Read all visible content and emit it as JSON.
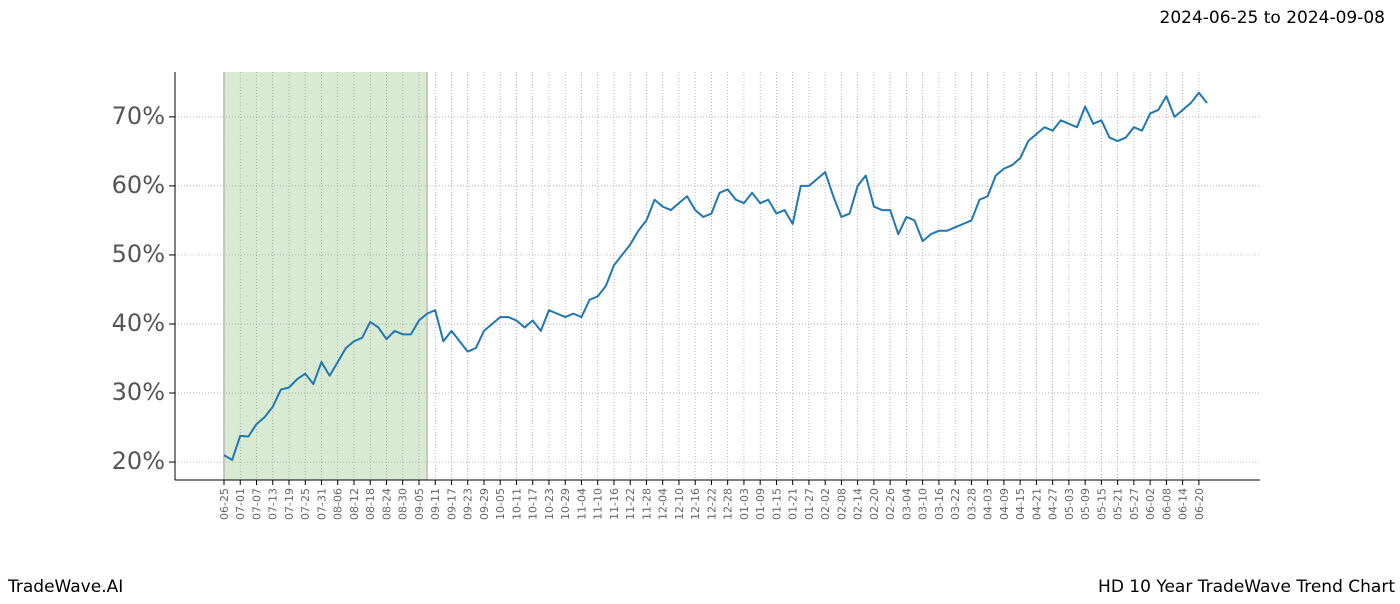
{
  "chart_data": {
    "type": "line",
    "date_range": "2024-06-25 to 2024-09-08",
    "brand": "TradeWave.AI",
    "title": "HD 10 Year TradeWave Trend Chart",
    "categories": [
      "06-25",
      null,
      "07-01",
      null,
      "07-07",
      null,
      "07-13",
      null,
      "07-19",
      null,
      "07-25",
      null,
      "07-31",
      null,
      "08-06",
      null,
      "08-12",
      null,
      "08-18",
      null,
      "08-24",
      null,
      "08-30",
      null,
      "09-05",
      null,
      "09-11",
      null,
      "09-17",
      null,
      "09-23",
      null,
      "09-29",
      null,
      "10-05",
      null,
      "10-11",
      null,
      "10-17",
      null,
      "10-23",
      null,
      "10-29",
      null,
      "11-04",
      null,
      "11-10",
      null,
      "11-16",
      null,
      "11-22",
      null,
      "11-28",
      null,
      "12-04",
      null,
      "12-10",
      null,
      "12-16",
      null,
      "12-22",
      null,
      "12-28",
      null,
      "01-03",
      null,
      "01-09",
      null,
      "01-15",
      null,
      "01-21",
      null,
      "01-27",
      null,
      "02-02",
      null,
      "02-08",
      null,
      "02-14",
      null,
      "02-20",
      null,
      "02-26",
      null,
      "03-04",
      null,
      "03-10",
      null,
      "03-16",
      null,
      "03-22",
      null,
      "03-28",
      null,
      "04-03",
      null,
      "04-09",
      null,
      "04-15",
      null,
      "04-21",
      null,
      "04-27",
      null,
      "05-03",
      null,
      "05-09",
      null,
      "05-15",
      null,
      "05-21",
      null,
      "05-27",
      null,
      "06-02",
      null,
      "06-08",
      null,
      "06-14",
      null,
      "06-20",
      null
    ],
    "series": [
      {
        "color": "#1f77b4",
        "values": [
          21.0,
          20.3,
          23.8,
          23.7,
          25.5,
          26.5,
          28.0,
          30.5,
          30.8,
          32.0,
          32.8,
          31.3,
          34.5,
          32.5,
          34.5,
          36.5,
          37.5,
          38.0,
          40.3,
          39.5,
          37.8,
          39.0,
          38.5,
          38.5,
          40.5,
          41.5,
          42.0,
          37.5,
          39.0,
          37.5,
          36.0,
          36.5,
          39.0,
          40.0,
          41.0,
          41.0,
          40.5,
          39.5,
          40.5,
          39.0,
          42.0,
          41.5,
          41.0,
          41.5,
          41.0,
          43.5,
          44.0,
          45.5,
          48.5,
          50.0,
          51.5,
          53.5,
          55.0,
          58.0,
          57.0,
          56.5,
          57.5,
          58.5,
          56.5,
          55.5,
          56.0,
          59.0,
          59.5,
          58.0,
          57.5,
          59.0,
          57.5,
          58.0,
          56.0,
          56.5,
          54.5,
          60.0,
          60.0,
          61.0,
          62.0,
          58.5,
          55.5,
          56.0,
          60.0,
          61.5,
          57.0,
          56.5,
          56.5,
          53.0,
          55.5,
          55.0,
          52.0,
          53.0,
          53.5,
          53.5,
          54.0,
          54.5,
          55.0,
          58.0,
          58.5,
          61.5,
          62.5,
          63.0,
          64.0,
          66.5,
          67.5,
          68.5,
          68.0,
          69.5,
          69.0,
          68.5,
          71.5,
          69.0,
          69.5,
          67.0,
          66.5,
          67.0,
          68.5,
          68.0,
          70.5,
          71.0,
          73.0,
          70.0,
          71.0,
          72.0,
          73.5,
          72.0
        ]
      }
    ],
    "highlight_x": [
      0,
      25
    ],
    "highlight_color": "#d9ead3",
    "ylim": [
      17.4,
      76.5
    ],
    "yticks": [
      {
        "value": 20,
        "label": "20%"
      },
      {
        "value": 30,
        "label": "30%"
      },
      {
        "value": 40,
        "label": "40%"
      },
      {
        "value": 50,
        "label": "50%"
      },
      {
        "value": 60,
        "label": "60%"
      },
      {
        "value": 70,
        "label": "70%"
      }
    ],
    "grid": true
  }
}
